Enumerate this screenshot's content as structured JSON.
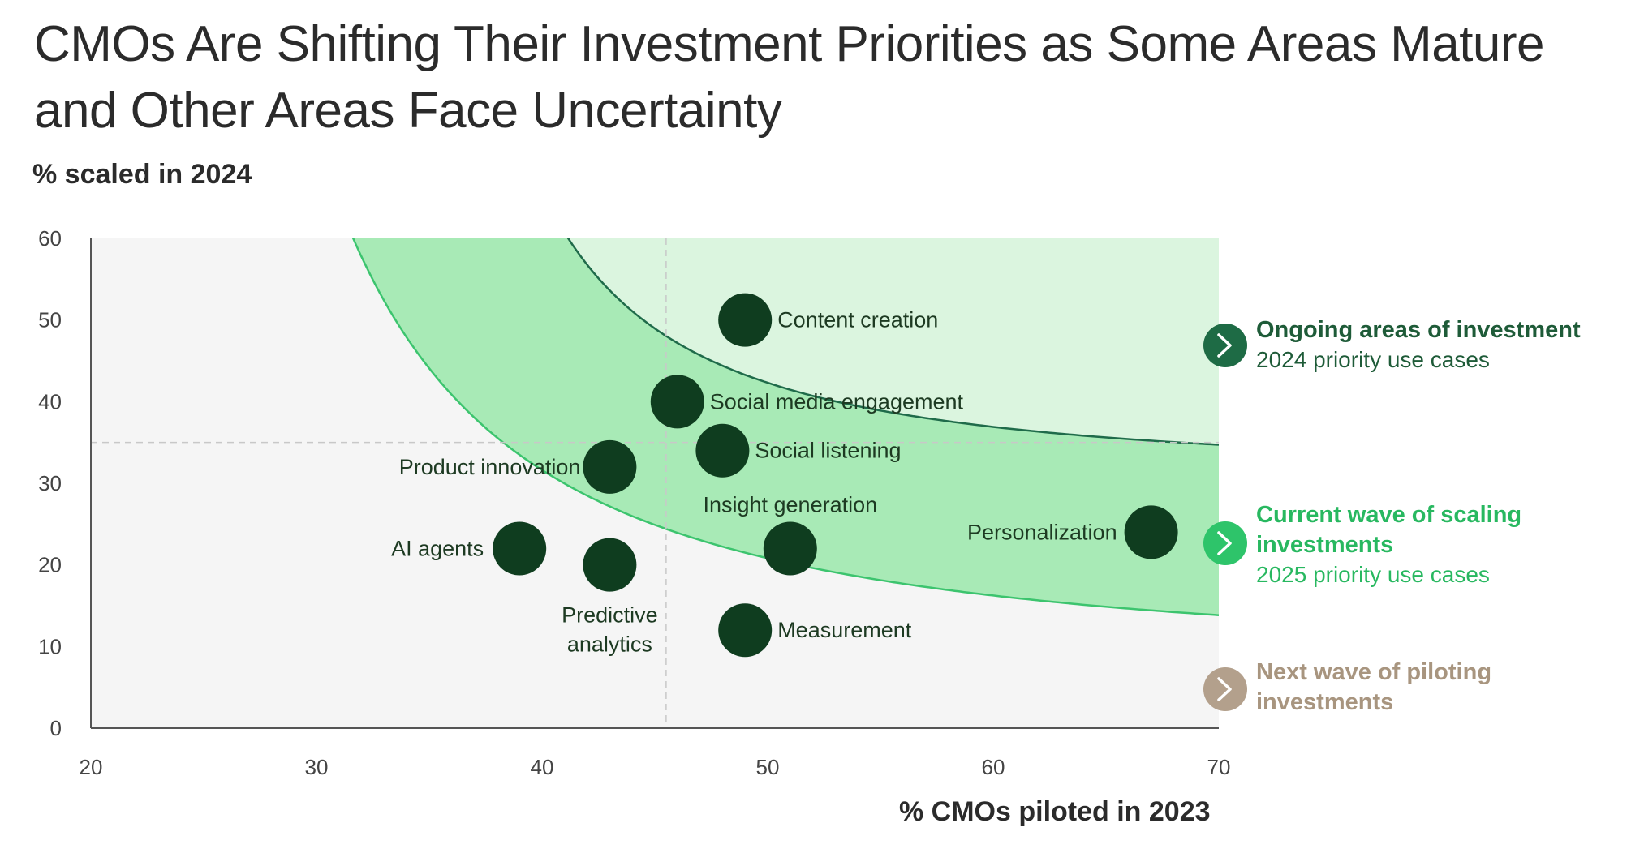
{
  "title_lines": [
    "CMOs Are Shifting Their Investment Priorities as Some Areas Mature",
    "and Other Areas Face Uncertainty"
  ],
  "chart_data": {
    "type": "scatter",
    "title": "CMOs Are Shifting Their Investment Priorities as Some Areas Mature and Other Areas Face Uncertainty",
    "xlabel": "% CMOs piloted in 2023",
    "ylabel": "% scaled in 2024",
    "xlim": [
      20,
      70
    ],
    "ylim": [
      0,
      60
    ],
    "xticks": [
      20,
      30,
      40,
      50,
      60,
      70
    ],
    "yticks": [
      0,
      10,
      20,
      30,
      40,
      50,
      60
    ],
    "reference_lines": {
      "x": 45.5,
      "y": 35
    },
    "points": [
      {
        "label": "Content creation",
        "x": 49,
        "y": 50
      },
      {
        "label": "Social media engagement",
        "x": 46,
        "y": 40
      },
      {
        "label": "Social listening",
        "x": 48,
        "y": 34
      },
      {
        "label": "Product innovation",
        "x": 43,
        "y": 32
      },
      {
        "label": "Insight generation",
        "x": 51,
        "y": 22
      },
      {
        "label": "Personalization",
        "x": 67,
        "y": 24
      },
      {
        "label": "AI agents",
        "x": 39,
        "y": 22
      },
      {
        "label": "Predictive analytics",
        "x": 43,
        "y": 20
      },
      {
        "label": "Measurement",
        "x": 49,
        "y": 12
      }
    ],
    "legend": [
      {
        "title_lines": [
          "Ongoing areas of investment"
        ],
        "subtitle": "2024 priority use cases",
        "color": "#1e6b45",
        "text_color": "#1e5b38"
      },
      {
        "title_lines": [
          "Current wave of scaling",
          "investments"
        ],
        "subtitle": "2025 priority use cases",
        "color": "#2ec46a",
        "text_color": "#28b860"
      },
      {
        "title_lines": [
          "Next wave of piloting",
          "investments"
        ],
        "subtitle": "",
        "color": "#b3a08c",
        "text_color": "#a8957f"
      }
    ],
    "colors": {
      "point": "#0f3d1f",
      "upper_zone": "#dbf5df",
      "middle_band": "#a8eab6",
      "lower_zone": "#f5f5f5",
      "upper_curve": "#1f6b4a",
      "lower_curve": "#3cc46e"
    }
  }
}
